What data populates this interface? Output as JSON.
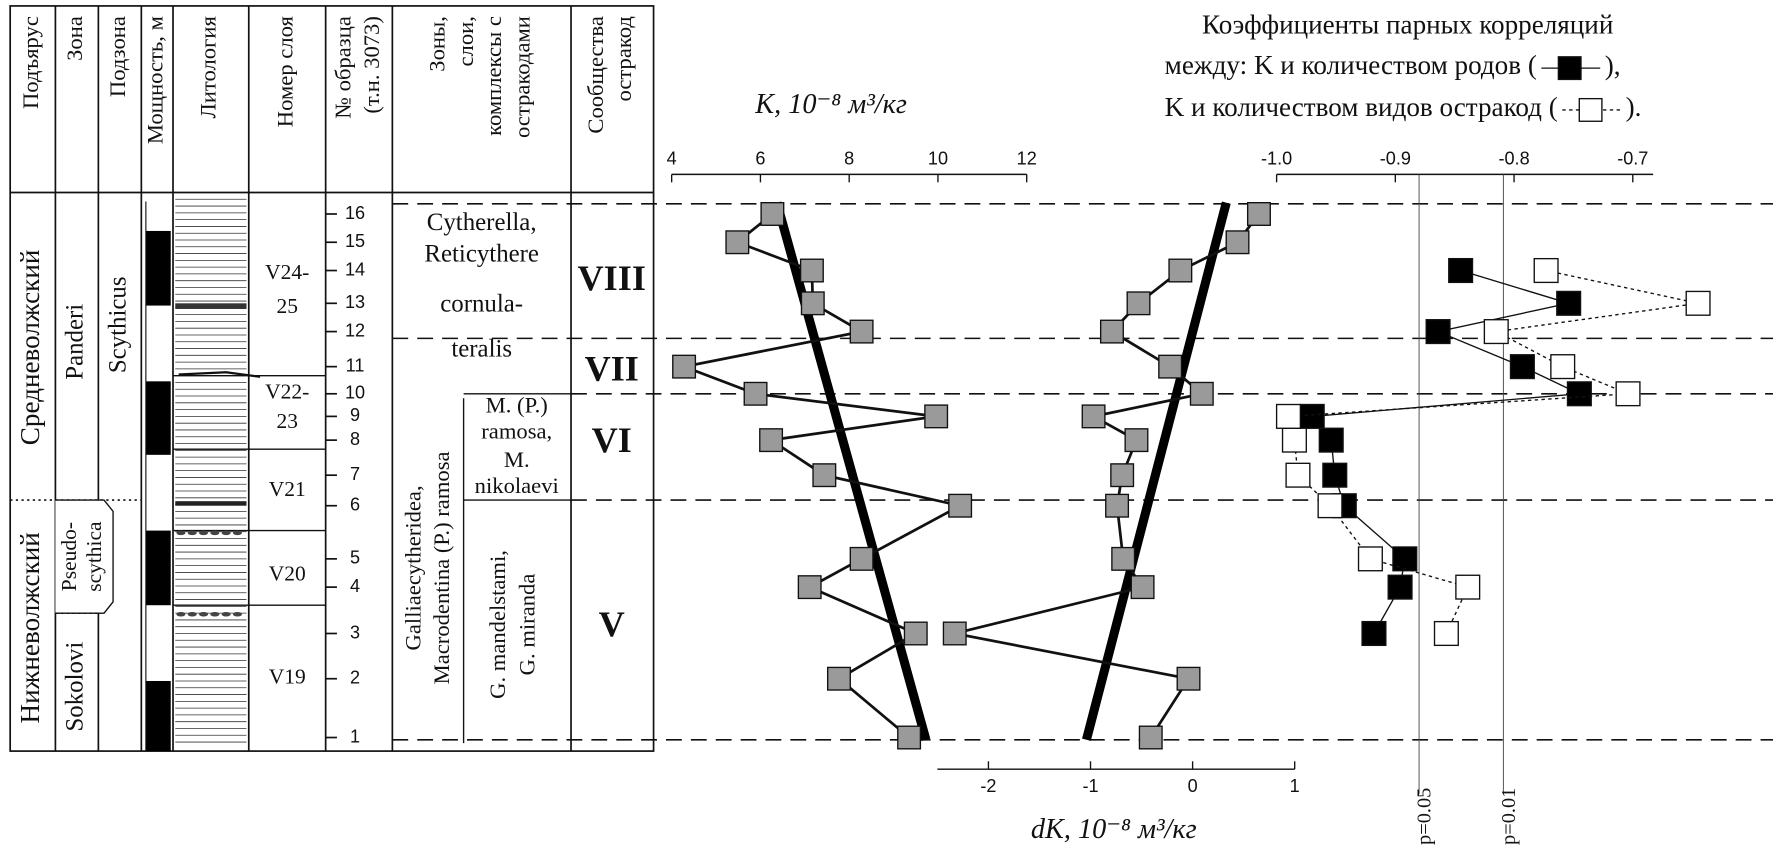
{
  "strat_table": {
    "headers": [
      [
        "Подъярус"
      ],
      [
        "Зона"
      ],
      [
        "Подзона"
      ],
      [
        "Мощность, м"
      ],
      [
        "Литология"
      ],
      [
        "Номер слоя"
      ],
      [
        "№ образца",
        "(т.н. 3073)"
      ],
      [
        "Зоны,",
        "слои,",
        "комплексы с",
        "остракодами"
      ],
      [
        "Сообщества",
        "остракод"
      ]
    ],
    "substages": [
      "Средневолжский",
      "Нижневолжский"
    ],
    "zones": [
      "Panderi",
      "Sokolovi"
    ],
    "subzones": [
      [
        "Scythicus"
      ],
      [
        "Pseudo-",
        "scythica"
      ]
    ],
    "layers": [
      [
        "V24-",
        "25"
      ],
      [
        "V22-",
        "23"
      ],
      [
        "V21"
      ],
      [
        "V20"
      ],
      [
        "V19"
      ]
    ],
    "ostracod_zones": [
      [
        "Cytherella,",
        "Reticythere",
        "cornula-",
        "teralis"
      ],
      [
        "Galliaecytheridea,",
        "Macrodentina (P.) ramosa"
      ],
      [
        "M. (P.)",
        "ramosa,",
        "M.",
        "nikolaevi"
      ],
      [
        "G. mandelstami,",
        "G. miranda"
      ]
    ],
    "communities": [
      "VIII",
      "VII",
      "VI",
      "V"
    ]
  },
  "chart_data": [
    {
      "type": "line",
      "xlabel": "K, 10⁻⁸ м³/кг",
      "xlim": [
        4,
        12
      ],
      "xticks": [
        4,
        6,
        8,
        10,
        12
      ],
      "categories": [
        1,
        2,
        3,
        4,
        5,
        6,
        7,
        8,
        9,
        10,
        11,
        12,
        13,
        14,
        15,
        16
      ],
      "values": [
        9.35,
        7.77,
        9.5,
        7.11,
        8.28,
        10.5,
        7.44,
        6.24,
        9.96,
        5.89,
        4.28,
        8.28,
        7.18,
        7.16,
        5.48,
        6.27
      ],
      "color": "#9a9a9a",
      "marker": "square",
      "trend": {
        "categories": [
          16,
          1
        ],
        "values": [
          6.37,
          9.73
        ],
        "color": "#000000"
      }
    },
    {
      "type": "line",
      "xlabel": "dK, 10⁻⁸ м³/кг",
      "xlim": [
        -2.5,
        1
      ],
      "xticks": [
        -2,
        -1,
        0,
        1
      ],
      "categories": [
        1,
        2,
        3,
        4,
        5,
        6,
        7,
        8,
        9,
        10,
        11,
        12,
        13,
        14,
        15,
        16
      ],
      "values": [
        -0.41,
        -0.04,
        -2.33,
        -0.49,
        -0.68,
        -0.74,
        -0.69,
        -0.55,
        -0.97,
        0.09,
        -0.22,
        -0.79,
        -0.53,
        -0.12,
        0.44,
        0.65
      ],
      "color": "#9a9a9a",
      "marker": "square",
      "trend": {
        "categories": [
          16,
          1
        ],
        "values": [
          0.33,
          -1.04
        ],
        "color": "#000000"
      }
    },
    {
      "type": "line",
      "title": "Коэффициенты парных корреляций",
      "title_2": "между:",
      "xlim": [
        -1.0,
        -0.7
      ],
      "xticks": [
        {
          "value": -1.0,
          "label": "-1.0"
        },
        -0.9,
        -0.8,
        -0.7
      ],
      "categories": [
        3,
        4,
        5,
        6,
        7,
        8,
        9,
        10,
        11,
        12,
        13,
        14
      ],
      "legend_punctuation": [
        [
          "(",
          "),"
        ],
        [
          "(",
          ")."
        ]
      ],
      "series": [
        {
          "name": "K и количеством родов",
          "color": "#000000",
          "dash": "solid",
          "values": [
            -0.918,
            -0.896,
            -0.892,
            -0.943,
            -0.951,
            -0.954,
            -0.97,
            -0.745,
            -0.793,
            -0.864,
            -0.754,
            -0.845
          ]
        },
        {
          "name": "K и количеством видов остракод",
          "color": "#ffffff",
          "dash": "dotted",
          "values": [
            -0.857,
            -0.839,
            -0.921,
            -0.955,
            -0.982,
            -0.985,
            -0.99,
            -0.704,
            -0.759,
            -0.815,
            -0.645,
            -0.773
          ]
        }
      ],
      "reference_lines": [
        {
          "value": -0.88,
          "label": "p=0.05"
        },
        {
          "value": -0.809,
          "label": "p=0.01"
        }
      ]
    }
  ]
}
